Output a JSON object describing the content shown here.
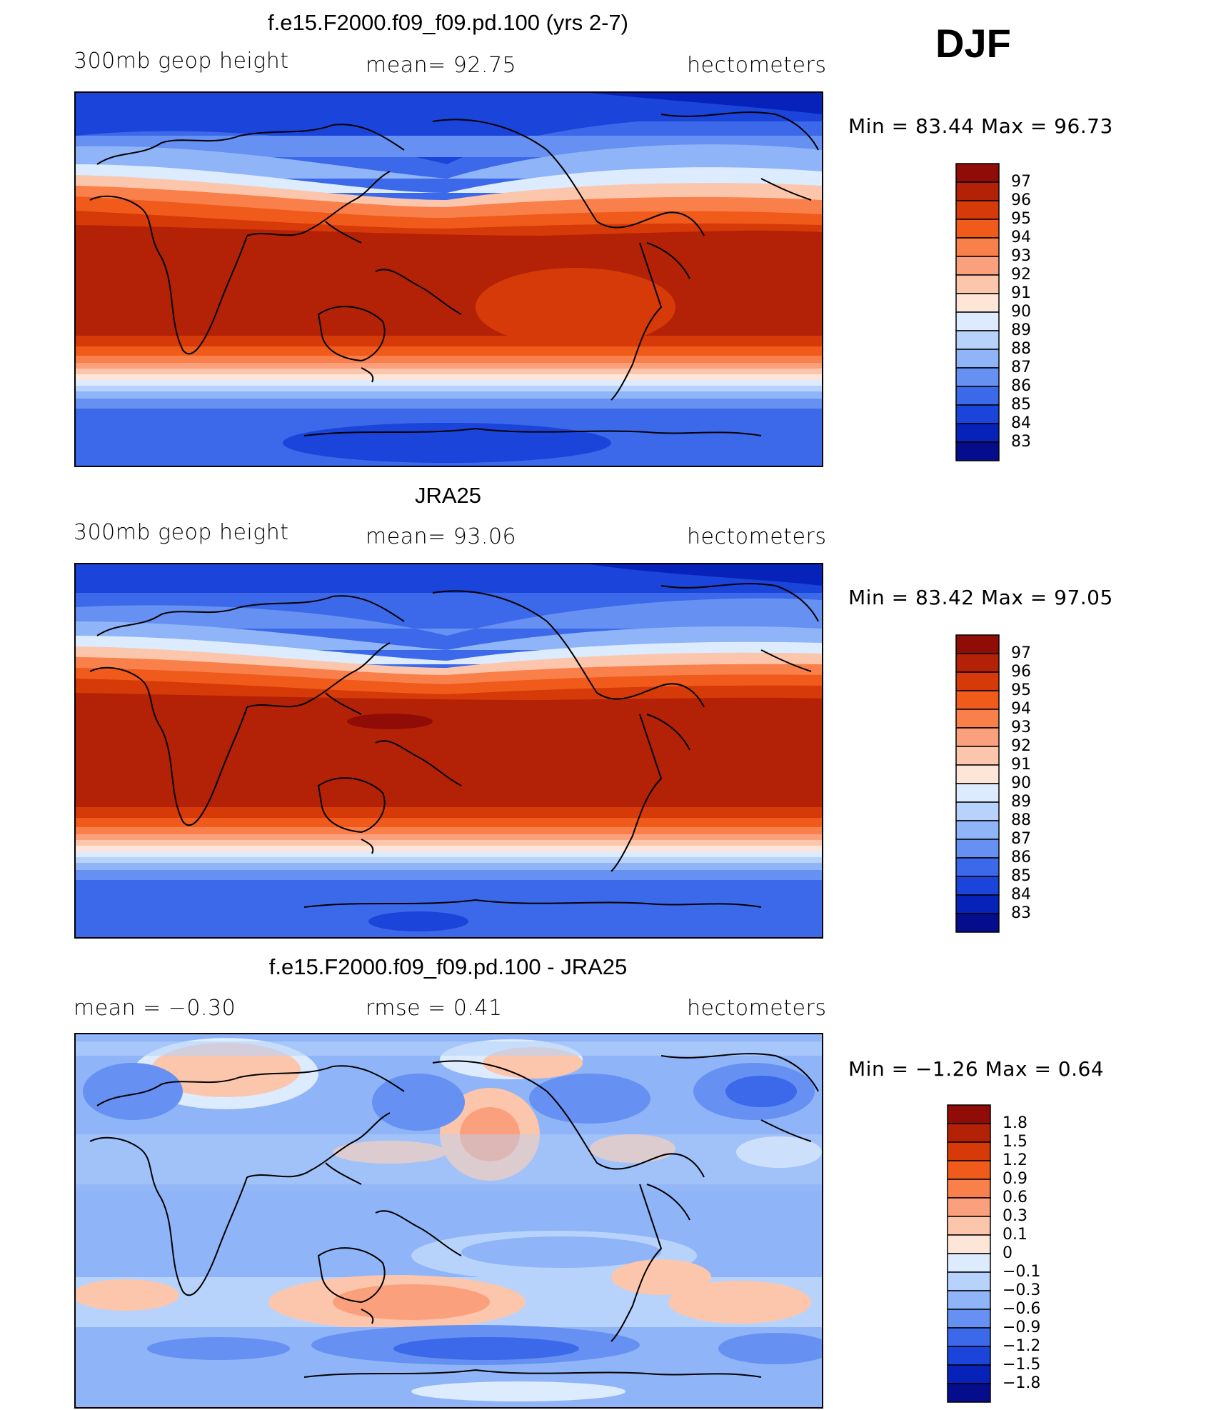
{
  "season": "DJF",
  "panels": [
    {
      "id": "model",
      "title": "f.e15.F2000.f09_f09.pd.100 (yrs 2-7)",
      "left_label": "300mb  geop  height",
      "center_label": "mean=   92.75",
      "right_label": "hectometers",
      "minmax": "Min  =    83.44  Max  =    96.73",
      "colorbar": {
        "labels": [
          "97",
          "96",
          "95",
          "94",
          "93",
          "92",
          "91",
          "90",
          "89",
          "88",
          "87",
          "86",
          "85",
          "84",
          "83"
        ],
        "colors": [
          "#8f0d06",
          "#b32206",
          "#d63a08",
          "#f05a1a",
          "#f9804a",
          "#fba07c",
          "#fcc6ac",
          "#fde6d8",
          "#dcebfd",
          "#b8d3fb",
          "#8fb4f7",
          "#6691f2",
          "#3c69ea",
          "#1a44da",
          "#0722b8",
          "#060d8c"
        ]
      }
    },
    {
      "id": "obs",
      "title": "JRA25",
      "left_label": "300mb  geop  height",
      "center_label": "mean=   93.06",
      "right_label": "hectometers",
      "minmax": "Min  =    83.42  Max  =    97.05",
      "colorbar": {
        "labels": [
          "97",
          "96",
          "95",
          "94",
          "93",
          "92",
          "91",
          "90",
          "89",
          "88",
          "87",
          "86",
          "85",
          "84",
          "83"
        ],
        "colors": [
          "#8f0d06",
          "#b32206",
          "#d63a08",
          "#f05a1a",
          "#f9804a",
          "#fba07c",
          "#fcc6ac",
          "#fde6d8",
          "#dcebfd",
          "#b8d3fb",
          "#8fb4f7",
          "#6691f2",
          "#3c69ea",
          "#1a44da",
          "#0722b8",
          "#060d8c"
        ]
      }
    },
    {
      "id": "diff",
      "title": "f.e15.F2000.f09_f09.pd.100 - JRA25",
      "left_label": "mean  =    −0.30",
      "center_label": "rmse  =     0.41",
      "right_label": "hectometers",
      "minmax": "Min  =    −1.26  Max  =     0.64",
      "colorbar": {
        "labels": [
          "1.8",
          "1.5",
          "1.2",
          "0.9",
          "0.6",
          "0.3",
          "0.1",
          "0",
          "−0.1",
          "−0.3",
          "−0.6",
          "−0.9",
          "−1.2",
          "−1.5",
          "−1.8"
        ],
        "colors": [
          "#8f0d06",
          "#b32206",
          "#d63a08",
          "#f05a1a",
          "#f9804a",
          "#fba07c",
          "#fcc6ac",
          "#fde6d8",
          "#dcebfd",
          "#b8d3fb",
          "#8fb4f7",
          "#6691f2",
          "#3c69ea",
          "#1a44da",
          "#0722b8",
          "#060d8c"
        ]
      }
    }
  ]
}
